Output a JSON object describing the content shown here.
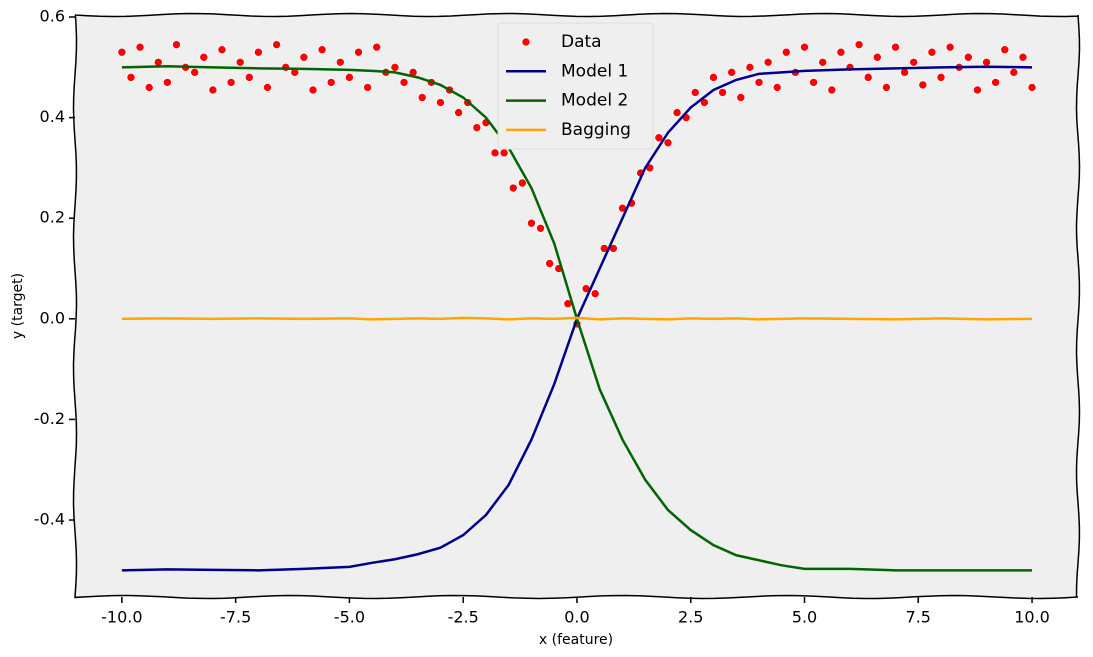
{
  "chart_data": {
    "type": "line",
    "xlabel": "x (feature)",
    "ylabel": "y (target)",
    "xlim": [
      -11.03,
      11.01
    ],
    "ylim": [
      -0.553,
      0.604
    ],
    "xticks": [
      {
        "value": -10,
        "label": "-10.0"
      },
      -7.5,
      {
        "value": -5,
        "label": "-5.0"
      },
      -2.5,
      {
        "value": 0,
        "label": "0.0"
      },
      2.5,
      {
        "value": 5,
        "label": "5.0"
      },
      7.5,
      {
        "value": 10,
        "label": "10.0"
      }
    ],
    "yticks": [
      -0.4,
      -0.2,
      {
        "value": 0,
        "label": "0.0"
      },
      0.2,
      0.4,
      0.6
    ],
    "grid": false,
    "legend": "upper center",
    "background": "#efefef",
    "series": [
      {
        "name": "Data",
        "mode": "markers",
        "color": "#ff0000",
        "x": [
          -10.0,
          -9.8,
          -9.6,
          -9.4,
          -9.2,
          -9.0,
          -8.8,
          -8.6,
          -8.4,
          -8.2,
          -8.0,
          -7.8,
          -7.6,
          -7.4,
          -7.2,
          -7.0,
          -6.8,
          -6.6,
          -6.4,
          -6.2,
          -6.0,
          -5.8,
          -5.6,
          -5.4,
          -5.2,
          -5.0,
          -4.8,
          -4.6,
          -4.4,
          -4.2,
          -4.0,
          -3.8,
          -3.6,
          -3.4,
          -3.2,
          -3.0,
          -2.8,
          -2.6,
          -2.4,
          -2.2,
          -2.0,
          -1.8,
          -1.6,
          -1.4,
          -1.2,
          -1.0,
          -0.8,
          -0.6,
          -0.4,
          -0.2,
          0.0,
          0.2,
          0.4,
          0.6,
          0.8,
          1.0,
          1.2,
          1.4,
          1.6,
          1.8,
          2.0,
          2.2,
          2.4,
          2.6,
          2.8,
          3.0,
          3.2,
          3.4,
          3.6,
          3.8,
          4.0,
          4.2,
          4.4,
          4.6,
          4.8,
          5.0,
          5.2,
          5.4,
          5.6,
          5.8,
          6.0,
          6.2,
          6.4,
          6.6,
          6.8,
          7.0,
          7.2,
          7.4,
          7.6,
          7.8,
          8.0,
          8.2,
          8.4,
          8.6,
          8.8,
          9.0,
          9.2,
          9.4,
          9.6,
          9.8,
          10.0
        ],
        "values": [
          0.53,
          0.48,
          0.54,
          0.46,
          0.51,
          0.47,
          0.545,
          0.5,
          0.49,
          0.52,
          0.455,
          0.535,
          0.47,
          0.51,
          0.48,
          0.53,
          0.46,
          0.545,
          0.5,
          0.49,
          0.52,
          0.455,
          0.535,
          0.47,
          0.51,
          0.48,
          0.53,
          0.46,
          0.54,
          0.49,
          0.5,
          0.47,
          0.49,
          0.44,
          0.47,
          0.43,
          0.455,
          0.41,
          0.43,
          0.38,
          0.39,
          0.33,
          0.33,
          0.26,
          0.27,
          0.19,
          0.18,
          0.11,
          0.1,
          0.03,
          -0.01,
          0.06,
          0.05,
          0.14,
          0.14,
          0.22,
          0.23,
          0.29,
          0.3,
          0.36,
          0.35,
          0.41,
          0.4,
          0.45,
          0.43,
          0.48,
          0.45,
          0.49,
          0.44,
          0.5,
          0.47,
          0.51,
          0.46,
          0.53,
          0.49,
          0.54,
          0.47,
          0.51,
          0.455,
          0.53,
          0.5,
          0.545,
          0.48,
          0.52,
          0.46,
          0.54,
          0.49,
          0.51,
          0.465,
          0.53,
          0.48,
          0.54,
          0.5,
          0.52,
          0.455,
          0.51,
          0.47,
          0.535,
          0.49,
          0.52,
          0.46
        ]
      },
      {
        "name": "Model 1",
        "mode": "line",
        "color": "#00008b",
        "x": [
          -10,
          -9,
          -8,
          -7,
          -6,
          -5,
          -4.5,
          -4,
          -3.5,
          -3,
          -2.5,
          -2,
          -1.5,
          -1,
          -0.5,
          0,
          0.5,
          1,
          1.5,
          2,
          2.5,
          3,
          3.5,
          4,
          4.5,
          5,
          6,
          7,
          8,
          9,
          10
        ],
        "values": [
          -0.5,
          -0.498,
          -0.499,
          -0.5,
          -0.497,
          -0.493,
          -0.485,
          -0.478,
          -0.468,
          -0.455,
          -0.43,
          -0.39,
          -0.33,
          -0.24,
          -0.13,
          0,
          0.1,
          0.2,
          0.3,
          0.37,
          0.42,
          0.455,
          0.475,
          0.487,
          0.49,
          0.493,
          0.496,
          0.498,
          0.5,
          0.501,
          0.5
        ]
      },
      {
        "name": "Model 2",
        "mode": "line",
        "color": "#006400",
        "x": [
          -10,
          -9,
          -8,
          -7,
          -6,
          -5,
          -4.5,
          -4,
          -3.5,
          -3,
          -2.5,
          -2,
          -1.5,
          -1,
          -0.5,
          0,
          0.5,
          1,
          1.5,
          2,
          2.5,
          3,
          3.5,
          4,
          4.5,
          5,
          6,
          7,
          8,
          9,
          10
        ],
        "values": [
          0.5,
          0.502,
          0.5,
          0.498,
          0.497,
          0.495,
          0.493,
          0.49,
          0.48,
          0.465,
          0.44,
          0.4,
          0.34,
          0.26,
          0.15,
          0,
          -0.14,
          -0.24,
          -0.32,
          -0.38,
          -0.42,
          -0.45,
          -0.47,
          -0.48,
          -0.49,
          -0.497,
          -0.497,
          -0.5,
          -0.5,
          -0.5,
          -0.5
        ]
      },
      {
        "name": "Bagging",
        "mode": "line",
        "color": "#ffa500",
        "x": [
          -10,
          -9,
          -8,
          -7,
          -6,
          -5,
          -4.5,
          -4,
          -3.5,
          -3,
          -2.5,
          -2,
          -1.5,
          -1,
          -0.5,
          0,
          0.5,
          1,
          1.5,
          2,
          2.5,
          3,
          3.5,
          4,
          4.5,
          5,
          6,
          7,
          8,
          9,
          10
        ],
        "values": [
          0,
          0.001,
          0,
          0.001,
          0,
          0.001,
          -0.001,
          0,
          0.001,
          0,
          0.002,
          0.001,
          -0.001,
          0.001,
          0,
          0.002,
          -0.001,
          0.001,
          0,
          -0.001,
          0.001,
          0,
          0.001,
          -0.001,
          0,
          0.001,
          0,
          -0.001,
          0.001,
          -0.001,
          0
        ]
      }
    ]
  }
}
